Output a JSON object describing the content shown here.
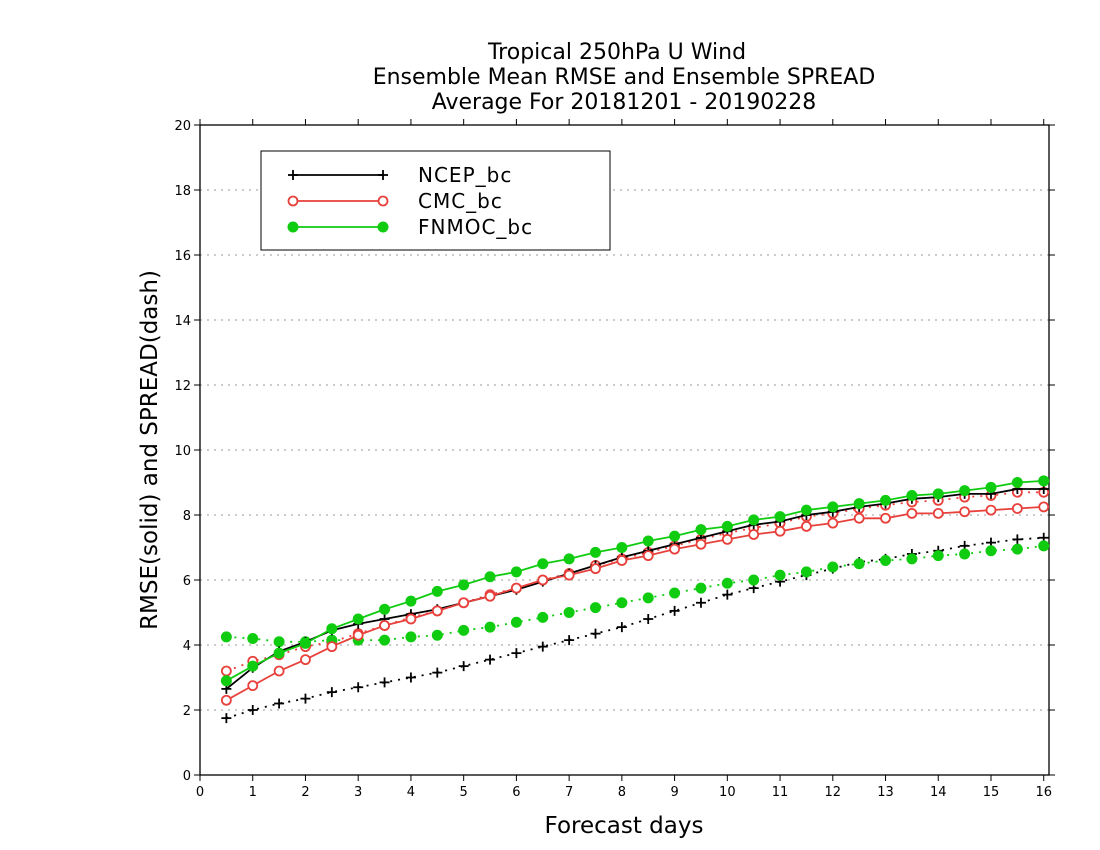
{
  "chart_data": {
    "type": "line",
    "title": [
      "Tropical 250hPa U Wind",
      "Ensemble Mean RMSE and Ensemble SPREAD",
      "Average For 20181201 - 20190228"
    ],
    "xlabel": "Forecast days",
    "ylabel": "RMSE(solid) and SPREAD(dash)",
    "xlim": [
      0,
      16.1
    ],
    "ylim": [
      0,
      20
    ],
    "xticks": [
      "0",
      "1",
      "2",
      "3",
      "4",
      "5",
      "6",
      "7",
      "8",
      "9",
      "10",
      "11",
      "12",
      "13",
      "14",
      "15",
      "16"
    ],
    "yticks": [
      "0",
      "2",
      "4",
      "6",
      "8",
      "10",
      "12",
      "14",
      "16",
      "18",
      "20"
    ],
    "grid": "horizontal dotted",
    "legend_position": "top-left",
    "x": [
      0.5,
      1,
      1.5,
      2,
      2.5,
      3,
      3.5,
      4,
      4.5,
      5,
      5.5,
      6,
      6.5,
      7,
      7.5,
      8,
      8.5,
      9,
      9.5,
      10,
      10.5,
      11,
      11.5,
      12,
      12.5,
      13,
      13.5,
      14,
      14.5,
      15,
      15.5,
      16
    ],
    "series": [
      {
        "name": "NCEP_bc",
        "color": "#000000",
        "marker": "plus",
        "rmse": [
          2.65,
          3.3,
          3.8,
          4.1,
          4.45,
          4.65,
          4.8,
          4.95,
          5.1,
          5.3,
          5.5,
          5.7,
          5.95,
          6.2,
          6.45,
          6.7,
          6.9,
          7.1,
          7.3,
          7.5,
          7.7,
          7.8,
          8.0,
          8.1,
          8.25,
          8.35,
          8.5,
          8.55,
          8.65,
          8.65,
          8.8,
          8.8
        ],
        "spread": [
          1.75,
          2.0,
          2.2,
          2.35,
          2.55,
          2.7,
          2.85,
          3.0,
          3.15,
          3.35,
          3.55,
          3.75,
          3.95,
          4.15,
          4.35,
          4.55,
          4.8,
          5.05,
          5.3,
          5.55,
          5.75,
          5.95,
          6.15,
          6.35,
          6.55,
          6.65,
          6.8,
          6.9,
          7.05,
          7.15,
          7.25,
          7.3
        ]
      },
      {
        "name": "CMC_bc",
        "color": "#e8413c",
        "marker": "open-circle",
        "rmse": [
          2.3,
          2.75,
          3.2,
          3.55,
          3.95,
          4.3,
          4.6,
          4.8,
          5.05,
          5.3,
          5.5,
          5.75,
          6.0,
          6.15,
          6.35,
          6.6,
          6.75,
          6.95,
          7.1,
          7.25,
          7.4,
          7.5,
          7.65,
          7.75,
          7.9,
          7.9,
          8.05,
          8.05,
          8.1,
          8.15,
          8.2,
          8.25
        ],
        "spread": [
          3.2,
          3.5,
          3.7,
          3.95,
          4.1,
          4.35,
          4.6,
          4.85,
          5.05,
          5.3,
          5.55,
          5.75,
          6.0,
          6.2,
          6.45,
          6.65,
          6.85,
          7.05,
          7.25,
          7.45,
          7.6,
          7.75,
          7.95,
          8.05,
          8.2,
          8.3,
          8.4,
          8.45,
          8.55,
          8.6,
          8.7,
          8.7
        ]
      },
      {
        "name": "FNMOC_bc",
        "color": "#10cc10",
        "marker": "filled-circle",
        "rmse": [
          2.9,
          3.35,
          3.75,
          4.05,
          4.5,
          4.8,
          5.1,
          5.35,
          5.65,
          5.85,
          6.1,
          6.25,
          6.5,
          6.65,
          6.85,
          7.0,
          7.2,
          7.35,
          7.55,
          7.65,
          7.85,
          7.95,
          8.15,
          8.25,
          8.35,
          8.45,
          8.6,
          8.65,
          8.75,
          8.85,
          9.0,
          9.05
        ],
        "spread": [
          4.25,
          4.2,
          4.1,
          4.1,
          4.15,
          4.15,
          4.15,
          4.25,
          4.3,
          4.45,
          4.55,
          4.7,
          4.85,
          5.0,
          5.15,
          5.3,
          5.45,
          5.6,
          5.75,
          5.9,
          6.0,
          6.15,
          6.25,
          6.4,
          6.5,
          6.6,
          6.65,
          6.75,
          6.8,
          6.9,
          6.95,
          7.05
        ]
      }
    ]
  }
}
